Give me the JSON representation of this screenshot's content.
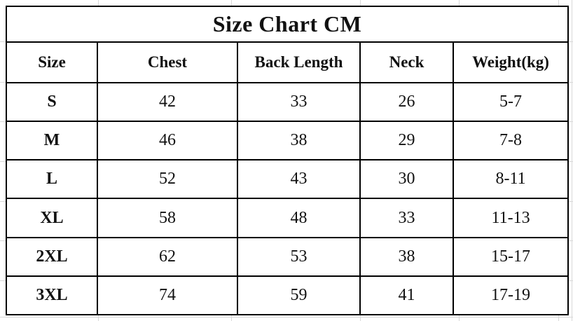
{
  "title": "Size Chart CM",
  "table": {
    "headers": [
      "Size",
      "Chest",
      "Back Length",
      "Neck",
      "Weight(kg)"
    ],
    "rows": [
      [
        "S",
        "42",
        "33",
        "26",
        "5-7"
      ],
      [
        "M",
        "46",
        "38",
        "29",
        "7-8"
      ],
      [
        "L",
        "52",
        "43",
        "30",
        "8-11"
      ],
      [
        "XL",
        "58",
        "48",
        "33",
        "11-13"
      ],
      [
        "2XL",
        "62",
        "53",
        "38",
        "15-17"
      ],
      [
        "3XL",
        "74",
        "59",
        "41",
        "17-19"
      ]
    ]
  },
  "chart_data": {
    "type": "table",
    "title": "Size Chart CM",
    "unit": "CM",
    "columns": [
      "Size",
      "Chest",
      "Back Length",
      "Neck",
      "Weight(kg)"
    ],
    "rows": [
      {
        "size": "S",
        "chest": 42,
        "back_length": 33,
        "neck": 26,
        "weight_kg": "5-7"
      },
      {
        "size": "M",
        "chest": 46,
        "back_length": 38,
        "neck": 29,
        "weight_kg": "7-8"
      },
      {
        "size": "L",
        "chest": 52,
        "back_length": 43,
        "neck": 30,
        "weight_kg": "8-11"
      },
      {
        "size": "XL",
        "chest": 58,
        "back_length": 48,
        "neck": 33,
        "weight_kg": "11-13"
      },
      {
        "size": "2XL",
        "chest": 62,
        "back_length": 53,
        "neck": 38,
        "weight_kg": "15-17"
      },
      {
        "size": "3XL",
        "chest": 74,
        "back_length": 59,
        "neck": 41,
        "weight_kg": "17-19"
      }
    ]
  },
  "colors": {
    "table_border": "#000000",
    "text": "#111111",
    "background_gridline": "#d9d9d9",
    "background": "#ffffff"
  }
}
